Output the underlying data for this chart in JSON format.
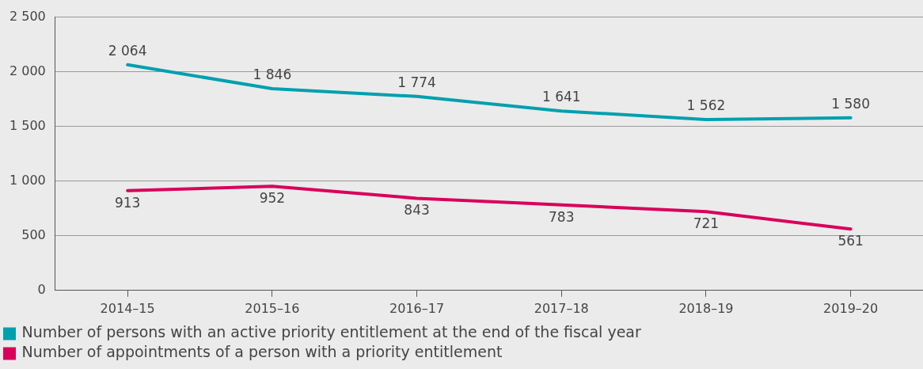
{
  "chart_data": {
    "type": "line",
    "categories": [
      "2014–15",
      "2015–16",
      "2016–17",
      "2017–18",
      "2018–19",
      "2019–20"
    ],
    "series": [
      {
        "name": "Number of persons with an active priority entitlement at the end of the fiscal year",
        "color": "#00a0ae",
        "values": [
          2064,
          1846,
          1774,
          1641,
          1562,
          1580
        ],
        "value_labels": [
          "2 064",
          "1 846",
          "1 774",
          "1 641",
          "1 562",
          "1 580"
        ]
      },
      {
        "name": "Number of appointments of a person with a priority entitlement",
        "color": "#d9005b",
        "values": [
          913,
          952,
          843,
          783,
          721,
          561
        ],
        "value_labels": [
          "913",
          "952",
          "843",
          "783",
          "721",
          "561"
        ]
      }
    ],
    "ylim": [
      0,
      2500
    ],
    "yticks": [
      {
        "value": 0,
        "label": "0"
      },
      {
        "value": 500,
        "label": "500"
      },
      {
        "value": 1000,
        "label": "1 000"
      },
      {
        "value": 1500,
        "label": "1 500"
      },
      {
        "value": 2000,
        "label": "2 000"
      },
      {
        "value": 2500,
        "label": "2 500"
      }
    ],
    "grid": "y",
    "legend": "bottom",
    "marker": "none",
    "line_style": "solid"
  }
}
